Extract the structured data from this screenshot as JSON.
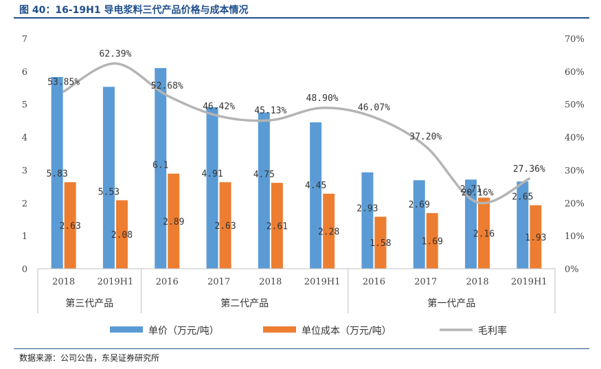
{
  "title": "图 40：16-19H1 导电浆料三代产品价格与成本情况",
  "source": "数据来源：公司公告，东吴证券研究所",
  "chart_data": {
    "type": "bar",
    "categories": [
      "2018",
      "2019H1",
      "2016",
      "2017",
      "2018",
      "2019H1",
      "2016",
      "2017",
      "2018",
      "2019H1"
    ],
    "groups": [
      {
        "label": "第三代产品",
        "count": 2
      },
      {
        "label": "第二代产品",
        "count": 4
      },
      {
        "label": "第一代产品",
        "count": 4
      }
    ],
    "series": [
      {
        "name": "单价（万元/吨）",
        "kind": "bar",
        "axis": "left",
        "color": "#5b9bd5",
        "values": [
          5.83,
          5.53,
          6.1,
          4.91,
          4.75,
          4.45,
          2.93,
          2.69,
          2.71,
          2.65
        ],
        "labels": [
          "5.83",
          "5.53",
          "6.1",
          "4.91",
          "4.75",
          "4.45",
          "2.93",
          "2.69",
          "2.71",
          "2.65"
        ]
      },
      {
        "name": "单位成本（万元/吨）",
        "kind": "bar",
        "axis": "left",
        "color": "#ed7d31",
        "values": [
          2.63,
          2.08,
          2.89,
          2.63,
          2.61,
          2.28,
          1.58,
          1.69,
          2.16,
          1.93
        ],
        "labels": [
          "2.63",
          "2.08",
          "2.89",
          "2.63",
          "2.61",
          "2.28",
          "1.58",
          "1.69",
          "2.16",
          "1.93"
        ]
      },
      {
        "name": "毛利率",
        "kind": "line",
        "axis": "right",
        "color": "#b4b4b4",
        "values": [
          53.85,
          62.39,
          52.68,
          46.42,
          45.13,
          48.9,
          46.07,
          37.2,
          20.16,
          27.36
        ],
        "labels": [
          "53.85%",
          "62.39%",
          "52.68%",
          "46.42%",
          "45.13%",
          "48.90%",
          "46.07%",
          "37.20%",
          "20.16%",
          "27.36%"
        ]
      }
    ],
    "ylim": [
      0,
      7
    ],
    "yticks": [
      "0",
      "1",
      "2",
      "3",
      "4",
      "5",
      "6",
      "7"
    ],
    "y2lim": [
      0,
      70
    ],
    "y2ticks": [
      "0%",
      "10%",
      "20%",
      "30%",
      "40%",
      "50%",
      "60%",
      "70%"
    ],
    "grid": false,
    "legend": "bottom"
  }
}
